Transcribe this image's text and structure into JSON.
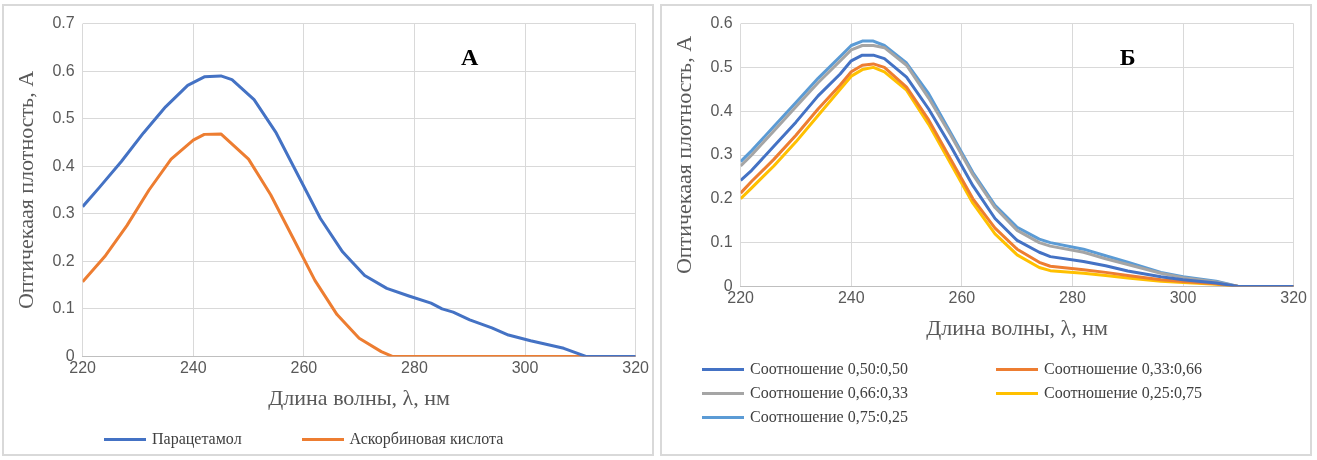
{
  "chart_data": [
    {
      "type": "line",
      "annotations": [
        "А"
      ],
      "xlabel": "Длина волны, λ, нм",
      "ylabel": "Оптичекаая плотность, А",
      "xlim": [
        220,
        320
      ],
      "xticks": [
        220,
        240,
        260,
        280,
        300,
        320
      ],
      "ylim": [
        0,
        0.7
      ],
      "yticks": [
        0,
        0.1,
        0.2,
        0.3,
        0.4,
        0.5,
        0.6,
        0.7
      ],
      "grid": true,
      "legend": "bottom",
      "marker": "none",
      "series": [
        {
          "name": "Парацетамол",
          "color": "#4472c4",
          "x": [
            220,
            223,
            227,
            231,
            235,
            239,
            242,
            245,
            247,
            251,
            255,
            259,
            263,
            267,
            271,
            275,
            279,
            283,
            285,
            287,
            290,
            294,
            297,
            301,
            304,
            307,
            311,
            320
          ],
          "values": [
            0.315,
            0.355,
            0.41,
            0.47,
            0.525,
            0.57,
            0.588,
            0.59,
            0.582,
            0.54,
            0.47,
            0.38,
            0.29,
            0.22,
            0.17,
            0.143,
            0.127,
            0.112,
            0.1,
            0.093,
            0.077,
            0.06,
            0.045,
            0.033,
            0.025,
            0.017,
            0,
            0
          ]
        },
        {
          "name": "Аскорбиновая кислота",
          "color": "#ed7d31",
          "x": [
            220,
            224,
            228,
            232,
            236,
            240,
            242,
            245,
            250,
            254,
            258,
            262,
            266,
            270,
            274,
            276,
            320
          ],
          "values": [
            0.157,
            0.21,
            0.275,
            0.35,
            0.415,
            0.455,
            0.467,
            0.468,
            0.415,
            0.34,
            0.25,
            0.16,
            0.088,
            0.038,
            0.01,
            0,
            0
          ]
        }
      ]
    },
    {
      "type": "line",
      "annotations": [
        "Б"
      ],
      "xlabel": "Длина волны, λ, нм",
      "ylabel": "Оптичекаая плотность, А",
      "xlim": [
        220,
        320
      ],
      "xticks": [
        220,
        240,
        260,
        280,
        300,
        320
      ],
      "ylim": [
        0,
        0.6
      ],
      "yticks": [
        0,
        0.1,
        0.2,
        0.3,
        0.4,
        0.5,
        0.6
      ],
      "grid": true,
      "legend": "bottom",
      "marker": "none",
      "x": [
        220,
        222,
        226,
        230,
        234,
        238,
        240,
        242,
        244,
        246,
        250,
        254,
        258,
        262,
        266,
        270,
        274,
        276,
        282,
        286,
        290,
        296,
        300,
        306,
        310,
        320
      ],
      "series": [
        {
          "name": "Соотношение 0,50:0,50",
          "color": "#4472c4",
          "values": [
            0.242,
            0.265,
            0.32,
            0.375,
            0.435,
            0.485,
            0.515,
            0.528,
            0.528,
            0.52,
            0.478,
            0.405,
            0.32,
            0.23,
            0.155,
            0.105,
            0.078,
            0.068,
            0.057,
            0.047,
            0.035,
            0.022,
            0.015,
            0.008,
            0,
            0
          ]
        },
        {
          "name": "Соотношение 0,33:0,66",
          "color": "#ed7d31",
          "values": [
            0.213,
            0.24,
            0.29,
            0.345,
            0.405,
            0.46,
            0.49,
            0.505,
            0.508,
            0.5,
            0.455,
            0.38,
            0.29,
            0.2,
            0.133,
            0.085,
            0.055,
            0.046,
            0.038,
            0.032,
            0.025,
            0.015,
            0.011,
            0.006,
            0,
            0
          ]
        },
        {
          "name": "Соотношение 0,66:0,33",
          "color": "#a5a5a5",
          "values": [
            0.275,
            0.3,
            0.355,
            0.41,
            0.465,
            0.515,
            0.54,
            0.55,
            0.55,
            0.545,
            0.505,
            0.43,
            0.345,
            0.255,
            0.18,
            0.128,
            0.1,
            0.092,
            0.078,
            0.063,
            0.05,
            0.03,
            0.02,
            0.01,
            0,
            0
          ]
        },
        {
          "name": "Соотношение 0,25:0,75",
          "color": "#ffc000",
          "values": [
            0.2,
            0.225,
            0.275,
            0.33,
            0.39,
            0.45,
            0.48,
            0.495,
            0.5,
            0.49,
            0.448,
            0.37,
            0.28,
            0.19,
            0.12,
            0.072,
            0.043,
            0.036,
            0.03,
            0.025,
            0.019,
            0.012,
            0.009,
            0.005,
            0,
            0
          ]
        },
        {
          "name": "Соотношение 0,75:0,25",
          "color": "#5b9bd5",
          "values": [
            0.285,
            0.31,
            0.365,
            0.42,
            0.475,
            0.525,
            0.55,
            0.56,
            0.56,
            0.55,
            0.51,
            0.44,
            0.35,
            0.26,
            0.185,
            0.135,
            0.108,
            0.1,
            0.085,
            0.07,
            0.055,
            0.032,
            0.022,
            0.012,
            0,
            0
          ]
        }
      ]
    }
  ]
}
